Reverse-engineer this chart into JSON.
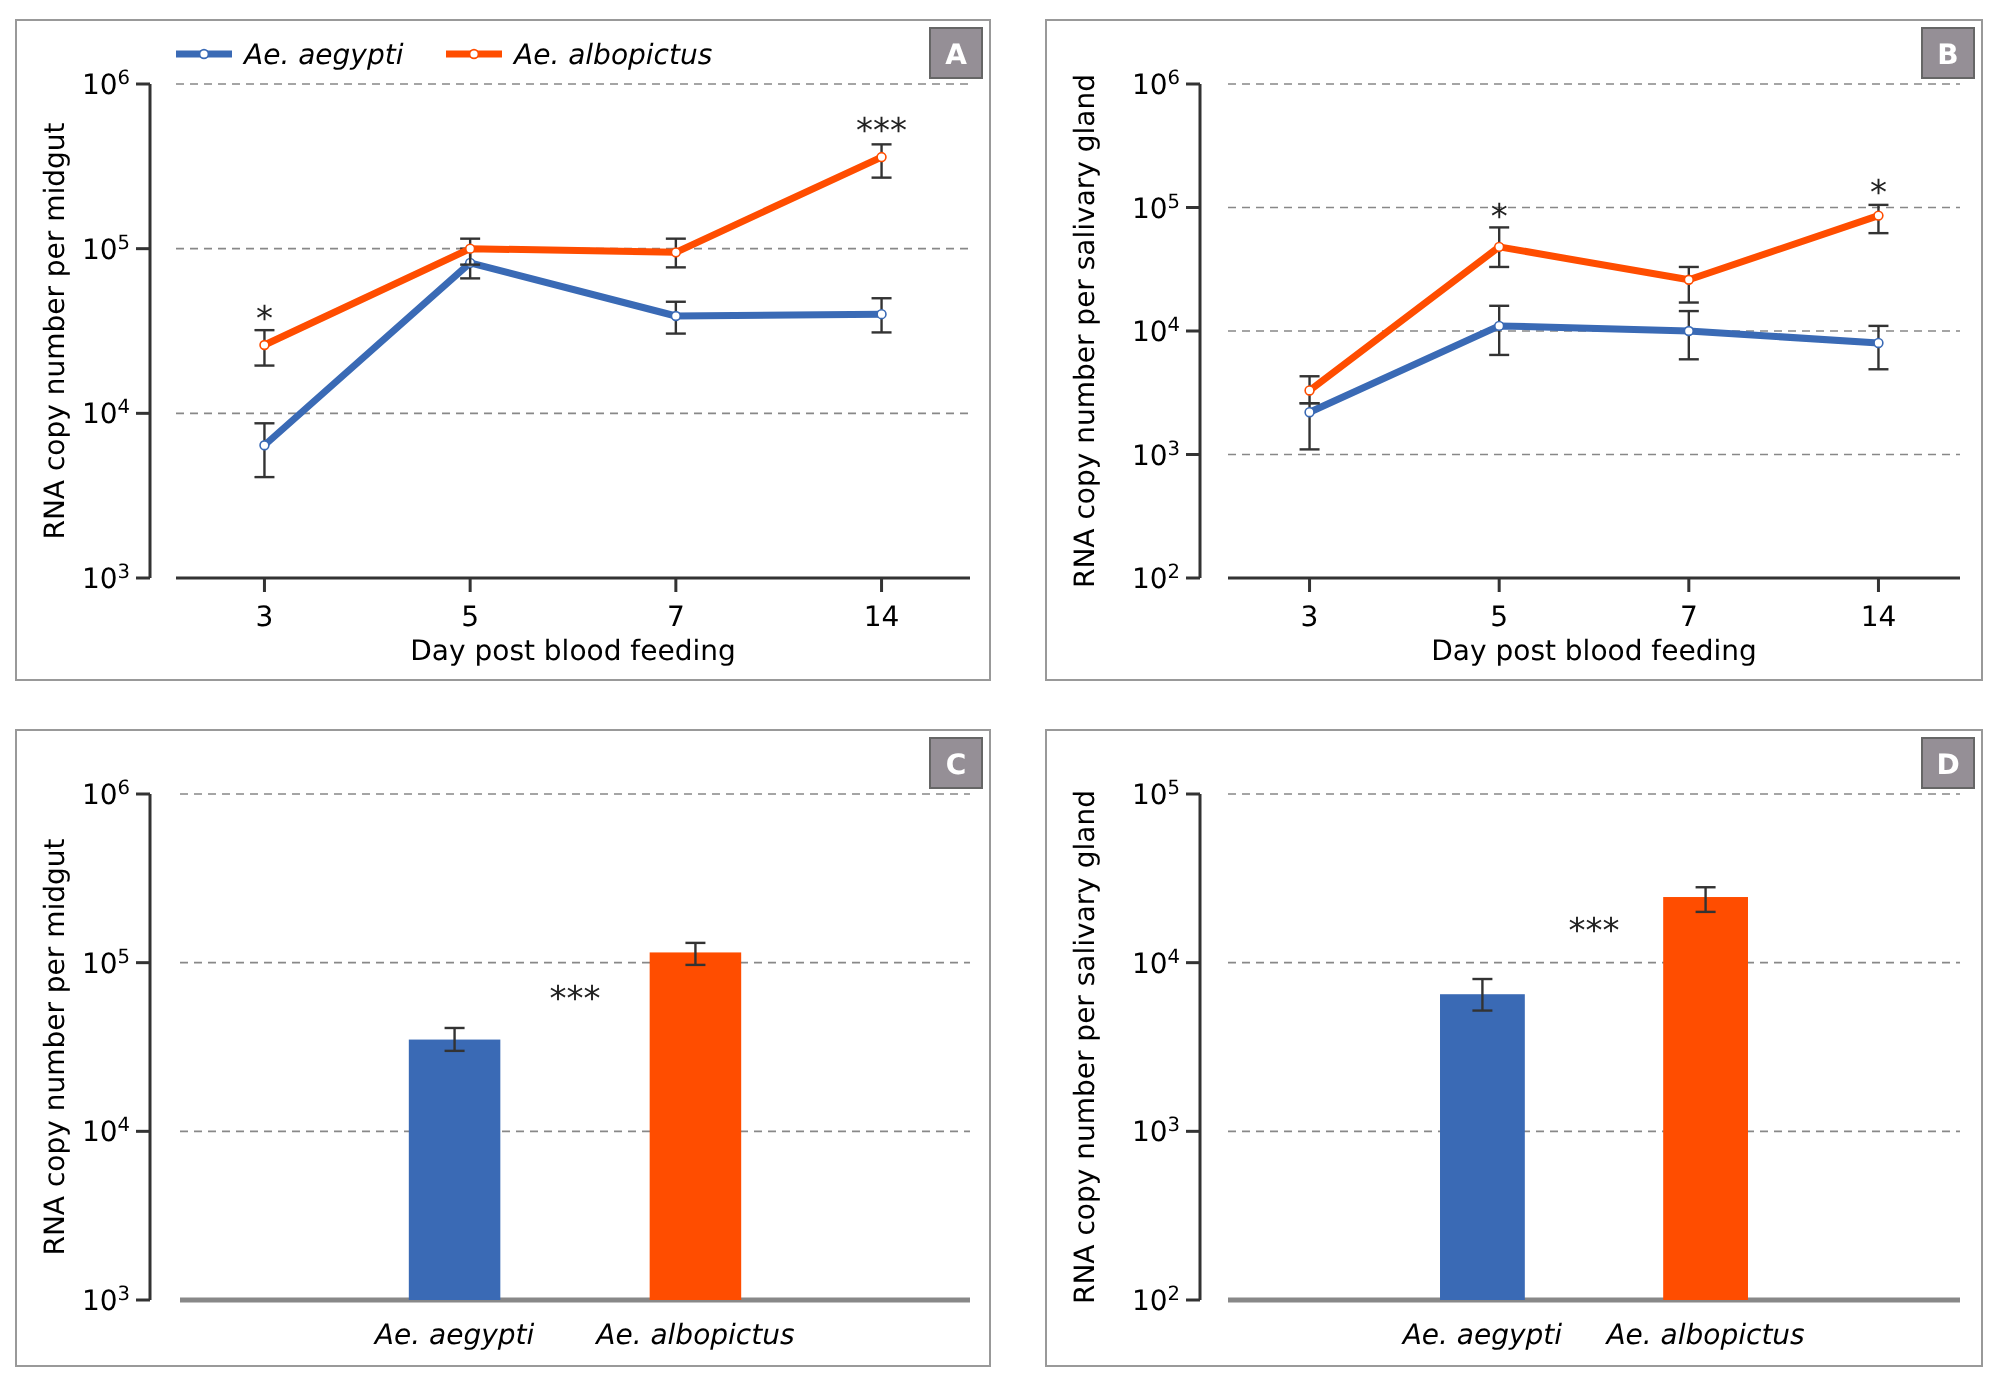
{
  "chart_data": [
    {
      "type": "line",
      "categories": [
        "3",
        "5",
        "7",
        "14"
      ],
      "xlabel": "Day post blood feeding",
      "ylabel": "RNA copy number per midgut",
      "log": "y",
      "grid": "y",
      "legend": "top",
      "marker": "circle",
      "line_style": "solid",
      "ylim": [
        1000,
        1000000
      ],
      "yticks": [
        {
          "value": 1000,
          "label": "10$^{3}$"
        },
        {
          "value": 10000,
          "label": "10$^{4}$"
        },
        {
          "value": 100000,
          "label": "10$^{5}$"
        },
        {
          "value": 1000000,
          "label": "10$^{6}$"
        }
      ],
      "series": [
        {
          "name": "Ae. aegypti",
          "color": "#3a6ab5",
          "values": [
            6400,
            82000,
            39000,
            40000
          ],
          "errors": [
            [
              4100,
              8700
            ],
            [
              66000,
              100000
            ],
            [
              30500,
              47600
            ],
            [
              31000,
              50000
            ]
          ]
        },
        {
          "name": "Ae. albopictus",
          "color": "#ff4d00",
          "values": [
            26000,
            100000,
            95000,
            360000
          ],
          "errors": [
            [
              19500,
              32000
            ],
            [
              80000,
              115000
            ],
            [
              77000,
              115000
            ],
            [
              270000,
              430000
            ]
          ]
        }
      ],
      "annotations": [
        "A",
        "*",
        "***"
      ]
    },
    {
      "type": "line",
      "categories": [
        "3",
        "5",
        "7",
        "14"
      ],
      "xlabel": "Day post blood feeding",
      "ylabel": "RNA copy number per salivary gland",
      "log": "y",
      "grid": "y",
      "marker": "circle",
      "line_style": "solid",
      "ylim": [
        100,
        1000000
      ],
      "yticks": [
        {
          "value": 100,
          "label": "10$^{2}$"
        },
        {
          "value": 1000,
          "label": "10$^{3}$"
        },
        {
          "value": 10000,
          "label": "10$^{4}$"
        },
        {
          "value": 100000,
          "label": "10$^{5}$"
        },
        {
          "value": 1000000,
          "label": "10$^{6}$"
        }
      ],
      "series": [
        {
          "color": "#3a6ab5",
          "values": [
            2200,
            11000,
            10000,
            8000
          ],
          "errors": [
            [
              1100,
              2600
            ],
            [
              6400,
              16000
            ],
            [
              5900,
              14500
            ],
            [
              4900,
              11000
            ]
          ]
        },
        {
          "color": "#ff4d00",
          "values": [
            3300,
            48000,
            26000,
            86000
          ],
          "errors": [
            [
              2600,
              4300
            ],
            [
              33000,
              69000
            ],
            [
              17000,
              33000
            ],
            [
              62000,
              105000
            ]
          ]
        }
      ],
      "annotations": [
        "B",
        "*",
        "*"
      ]
    },
    {
      "type": "bar",
      "categories": [
        "Ae. aegypti",
        "Ae. albopictus"
      ],
      "ylabel": "RNA copy number per midgut",
      "log": "y",
      "grid": "y",
      "ylim": [
        1000,
        1000000
      ],
      "yticks": [
        {
          "value": 1000,
          "label": "10$^{3}$"
        },
        {
          "value": 10000,
          "label": "10$^{4}$"
        },
        {
          "value": 100000,
          "label": "10$^{5}$"
        },
        {
          "value": 1000000,
          "label": "10$^{6}$"
        }
      ],
      "values": [
        35000,
        115000
      ],
      "colors": [
        "#3a6ab5",
        "#ff4d00"
      ],
      "errors": [
        [
          30000,
          41000
        ],
        [
          97000,
          131000
        ]
      ],
      "annotations": [
        "C",
        "***"
      ]
    },
    {
      "type": "bar",
      "categories": [
        "Ae. aegypti",
        "Ae. albopictus"
      ],
      "ylabel": "RNA copy number per salivary gland",
      "log": "y",
      "grid": "y",
      "ylim": [
        100,
        100000
      ],
      "yticks": [
        {
          "value": 100,
          "label": "10$^{2}$"
        },
        {
          "value": 1000,
          "label": "10$^{3}$"
        },
        {
          "value": 10000,
          "label": "10$^{4}$"
        },
        {
          "value": 100000,
          "label": "10$^{5}$"
        }
      ],
      "values": [
        6500,
        24500
      ],
      "colors": [
        "#3a6ab5",
        "#ff4d00"
      ],
      "errors": [
        [
          5200,
          8000
        ],
        [
          20000,
          28000
        ]
      ],
      "annotations": [
        "D",
        "***"
      ]
    }
  ]
}
